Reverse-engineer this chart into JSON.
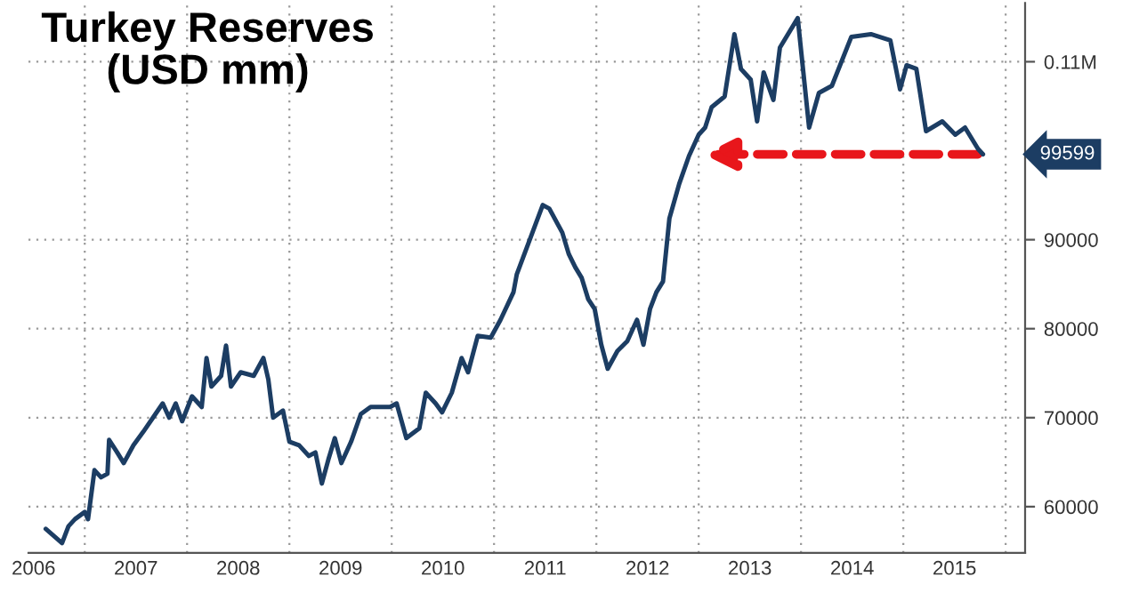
{
  "chart_data": {
    "type": "line",
    "title": "Turkey Reserves\n(USD mm)",
    "x": [
      2006.619,
      2006.778,
      2006.841,
      2006.905,
      2007.0,
      2007.032,
      2007.095,
      2007.159,
      2007.222,
      2007.238,
      2007.317,
      2007.381,
      2007.476,
      2007.571,
      2007.667,
      2007.762,
      2007.825,
      2007.889,
      2007.952,
      2008.048,
      2008.143,
      2008.19,
      2008.238,
      2008.333,
      2008.381,
      2008.429,
      2008.524,
      2008.651,
      2008.746,
      2008.794,
      2008.841,
      2008.937,
      2009.0,
      2009.095,
      2009.19,
      2009.254,
      2009.317,
      2009.381,
      2009.444,
      2009.508,
      2009.603,
      2009.698,
      2009.794,
      2009.984,
      2010.048,
      2010.143,
      2010.27,
      2010.333,
      2010.429,
      2010.492,
      2010.587,
      2010.683,
      2010.746,
      2010.841,
      2010.968,
      2011.063,
      2011.19,
      2011.222,
      2011.349,
      2011.476,
      2011.54,
      2011.667,
      2011.73,
      2011.794,
      2011.857,
      2011.921,
      2011.984,
      2012.048,
      2012.111,
      2012.206,
      2012.302,
      2012.397,
      2012.46,
      2012.524,
      2012.587,
      2012.651,
      2012.714,
      2012.81,
      2012.905,
      2013.0,
      2013.063,
      2013.127,
      2013.254,
      2013.349,
      2013.413,
      2013.508,
      2013.571,
      2013.635,
      2013.73,
      2013.794,
      2013.968,
      2014.079,
      2014.175,
      2014.302,
      2014.492,
      2014.683,
      2014.873,
      2014.968,
      2015.032,
      2015.127,
      2015.222,
      2015.381,
      2015.508,
      2015.603,
      2015.73,
      2015.778
    ],
    "series": [
      {
        "color": "#1c3d63",
        "values": [
          57500,
          55900,
          57800,
          58600,
          59400,
          58600,
          64100,
          63300,
          63700,
          67500,
          66100,
          64900,
          66900,
          68400,
          70000,
          71600,
          70000,
          71600,
          69600,
          72400,
          71200,
          76700,
          73500,
          74700,
          78100,
          73500,
          75100,
          74700,
          76700,
          74300,
          70000,
          70800,
          67300,
          66900,
          65700,
          66100,
          62600,
          65300,
          67700,
          64900,
          67300,
          70400,
          71200,
          71200,
          71600,
          67700,
          68800,
          72800,
          71600,
          70600,
          72800,
          76700,
          75100,
          79200,
          79000,
          81000,
          84100,
          86100,
          90000,
          93900,
          93500,
          90800,
          88400,
          86900,
          85700,
          83300,
          82200,
          78200,
          75500,
          77500,
          78600,
          81000,
          78200,
          82200,
          84100,
          85300,
          92400,
          96300,
          99400,
          101800,
          102600,
          104900,
          106100,
          113100,
          109200,
          108000,
          103300,
          108800,
          105700,
          111600,
          114900,
          102600,
          106500,
          107300,
          112800,
          113100,
          112400,
          106900,
          109600,
          109200,
          102200,
          103300,
          101800,
          102600,
          100200,
          99599
        ]
      }
    ],
    "xlim": [
      2006.45,
      2016.19
    ],
    "ylim": [
      54800,
      116600
    ],
    "xticks": [
      {
        "value": 2007,
        "label": null
      },
      {
        "value": 2008,
        "label": null
      },
      {
        "value": 2009,
        "label": null
      },
      {
        "value": 2010,
        "label": null
      },
      {
        "value": 2011,
        "label": null
      },
      {
        "value": 2012,
        "label": null
      },
      {
        "value": 2013,
        "label": null
      },
      {
        "value": 2014,
        "label": null
      },
      {
        "value": 2015,
        "label": null
      },
      {
        "value": 2016,
        "label": null
      },
      {
        "value": 2006.5,
        "label": "2006"
      },
      {
        "value": 2007.5,
        "label": "2007"
      },
      {
        "value": 2008.5,
        "label": "2008"
      },
      {
        "value": 2009.5,
        "label": "2009"
      },
      {
        "value": 2010.5,
        "label": "2010"
      },
      {
        "value": 2011.5,
        "label": "2011"
      },
      {
        "value": 2012.5,
        "label": "2012"
      },
      {
        "value": 2013.5,
        "label": "2013"
      },
      {
        "value": 2014.5,
        "label": "2014"
      },
      {
        "value": 2015.5,
        "label": "2015"
      }
    ],
    "yticks": [
      60000,
      70000,
      80000,
      90000,
      {
        "value": 110000,
        "label": "0.11M"
      }
    ],
    "grid": true,
    "annotations": [
      "99599"
    ]
  }
}
